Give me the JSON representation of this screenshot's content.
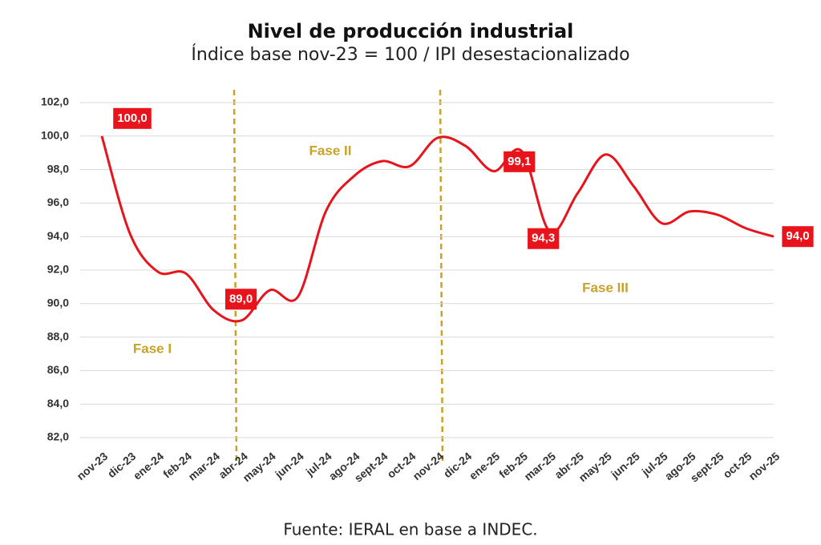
{
  "chart_data": {
    "type": "line",
    "title": "Nivel de producción industrial",
    "subtitle": "Índice base nov-23 = 100 / IPI desestacionalizado",
    "source": "Fuente: IERAL en base a INDEC.",
    "categories": [
      "nov-23",
      "dic-23",
      "ene-24",
      "feb-24",
      "mar-24",
      "abr-24",
      "may-24",
      "jun-24",
      "jul-24",
      "ago-24",
      "sept-24",
      "oct-24",
      "nov-24",
      "dic-24",
      "ene-25",
      "feb-25",
      "mar-25",
      "abr-25",
      "may-25",
      "jun-25",
      "jul-25",
      "ago-25",
      "sept-25",
      "oct-25",
      "nov-25"
    ],
    "series": [
      {
        "name": "IPI",
        "color": "#e8131b",
        "values": [
          100.0,
          94.2,
          91.9,
          91.8,
          89.6,
          89.0,
          90.8,
          90.4,
          95.5,
          97.6,
          98.5,
          98.2,
          99.9,
          99.4,
          97.9,
          99.1,
          94.3,
          96.6,
          98.9,
          97.0,
          94.8,
          95.5,
          95.3,
          94.5,
          94.0
        ],
        "value_labels": [
          "100,0",
          null,
          null,
          null,
          null,
          "89,0",
          null,
          null,
          null,
          null,
          null,
          null,
          null,
          null,
          null,
          "99,1",
          "94,3",
          null,
          null,
          null,
          null,
          null,
          null,
          null,
          "94,0"
        ]
      }
    ],
    "ylim": [
      82,
      102
    ],
    "yticks": [
      {
        "value": 82,
        "label": "82,0"
      },
      {
        "value": 84,
        "label": "84,0"
      },
      {
        "value": 86,
        "label": "86,0"
      },
      {
        "value": 88,
        "label": "88,0"
      },
      {
        "value": 90,
        "label": "90,0"
      },
      {
        "value": 92,
        "label": "92,0"
      },
      {
        "value": 94,
        "label": "94,0"
      },
      {
        "value": 96,
        "label": "96,0"
      },
      {
        "value": 98,
        "label": "98,0"
      },
      {
        "value": 100,
        "label": "100,0"
      },
      {
        "value": 102,
        "label": "102,0"
      }
    ],
    "grid": true,
    "annotations": [
      "Fase I",
      "Fase II",
      "Fase III"
    ]
  }
}
